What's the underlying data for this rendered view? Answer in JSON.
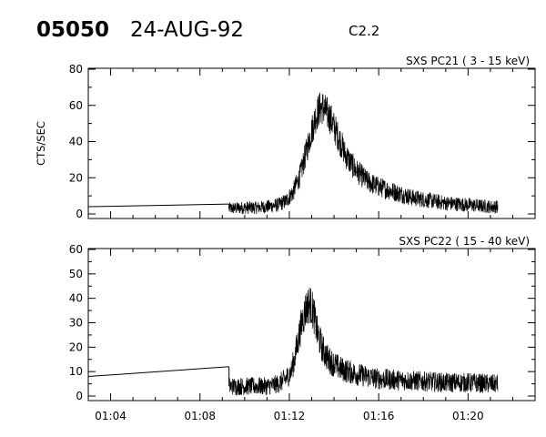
{
  "header": {
    "event_id": "05050",
    "date": "24-AUG-92",
    "flare_class": "C2.2"
  },
  "chart_data": [
    {
      "type": "line",
      "title": "SXS PC21  (  3 - 15 keV)",
      "ylabel": "CTS/SEC",
      "ylim": [
        0,
        80
      ],
      "yticks": [
        0,
        20,
        40,
        60,
        80
      ],
      "xlim": [
        "01:03",
        "01:23"
      ],
      "xticks": [
        "01:04",
        "01:08",
        "01:12",
        "01:16",
        "01:20"
      ],
      "gap_segment": {
        "x": [
          "01:03",
          "01:09:18"
        ],
        "y": [
          4,
          5.5
        ]
      },
      "series": [
        {
          "x": [
            "01:09:18",
            "01:10:00",
            "01:10:30",
            "01:11:00",
            "01:11:30",
            "01:11:50",
            "01:12:10",
            "01:12:30",
            "01:12:45",
            "01:13:00",
            "01:13:10",
            "01:13:20",
            "01:13:30",
            "01:13:40",
            "01:13:50",
            "01:14:00",
            "01:14:15",
            "01:14:30",
            "01:14:45",
            "01:15:00",
            "01:15:30",
            "01:16:00",
            "01:16:30",
            "01:17:00",
            "01:17:30",
            "01:18:00",
            "01:19:00",
            "01:20:00",
            "01:20:30",
            "01:21:00",
            "01:21:20"
          ],
          "y": [
            3,
            3.5,
            3.5,
            4,
            5,
            7,
            12,
            22,
            34,
            46,
            53,
            58,
            59,
            56,
            53,
            48,
            41,
            33,
            28,
            24,
            18,
            15,
            13,
            11,
            9,
            8,
            6,
            5,
            4.5,
            4,
            4
          ]
        }
      ]
    },
    {
      "type": "line",
      "title": "SXS PC22  ( 15 - 40 keV)",
      "ylabel": "",
      "ylim": [
        0,
        60
      ],
      "yticks": [
        0,
        10,
        20,
        30,
        40,
        50,
        60
      ],
      "xlim": [
        "01:03",
        "01:23"
      ],
      "xticks": [
        "01:04",
        "01:08",
        "01:12",
        "01:16",
        "01:20"
      ],
      "gap_segment": {
        "x": [
          "01:03",
          "01:09:18"
        ],
        "y": [
          8,
          12
        ]
      },
      "series": [
        {
          "x": [
            "01:09:18",
            "01:10:00",
            "01:11:00",
            "01:11:30",
            "01:11:50",
            "01:12:05",
            "01:12:15",
            "01:12:25",
            "01:12:35",
            "01:12:45",
            "01:12:55",
            "01:13:05",
            "01:13:15",
            "01:13:30",
            "01:13:45",
            "01:14:00",
            "01:14:20",
            "01:14:40",
            "01:15:00",
            "01:15:30",
            "01:16:00",
            "01:17:00",
            "01:18:00",
            "01:19:00",
            "01:20:00",
            "01:21:00",
            "01:21:20"
          ],
          "y": [
            4,
            4,
            4,
            5,
            7,
            10,
            16,
            24,
            31,
            36,
            38,
            34,
            26,
            19,
            15,
            13,
            11,
            10,
            9,
            8,
            7,
            6.5,
            6,
            5.5,
            5.5,
            5,
            5
          ]
        }
      ]
    }
  ]
}
